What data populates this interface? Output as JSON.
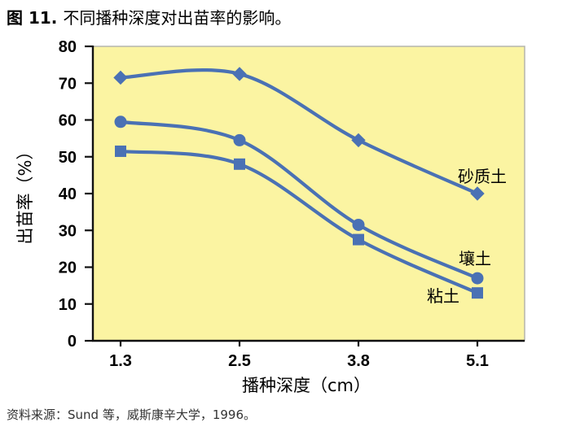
{
  "figure": {
    "title_prefix": "图 11.",
    "title_text": "不同播种深度对出苗率的影响。",
    "source": "资料来源：Sund 等，威斯康辛大学，1996。"
  },
  "chart_data": {
    "type": "line",
    "title": "不同播种深度对出苗率的影响",
    "x": [
      1.3,
      2.5,
      3.8,
      5.1
    ],
    "x_tick_labels": [
      "1.3",
      "2.5",
      "3.8",
      "5.1"
    ],
    "xlabel": "播种深度（cm）",
    "ylabel": "出苗率（%）",
    "ylim": [
      0,
      80
    ],
    "y_ticks": [
      0,
      10,
      20,
      30,
      40,
      50,
      60,
      70,
      80
    ],
    "grid": false,
    "legend": "inline-labels-at-line-ends",
    "series": [
      {
        "name": "砂质土",
        "marker": "diamond",
        "values": [
          71.5,
          72.5,
          54.5,
          40
        ]
      },
      {
        "name": "壤土",
        "marker": "circle",
        "values": [
          59.5,
          54.5,
          31.5,
          17
        ]
      },
      {
        "name": "粘土",
        "marker": "square",
        "values": [
          51.5,
          48,
          27.5,
          13
        ]
      }
    ],
    "colors": {
      "line": "#4a71b4",
      "plot_bg": "#fbf4a2",
      "plot_border": "#b5b5ad",
      "axis": "#111111",
      "text": "#000000",
      "source_text": "#333333"
    }
  }
}
